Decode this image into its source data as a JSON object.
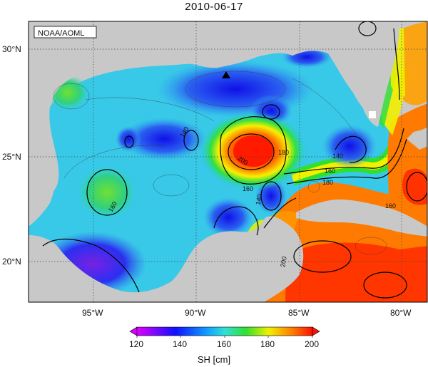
{
  "title": "2010-06-17",
  "credit": "NOAA/AOML",
  "lon_ticks": [
    "95°W",
    "90°W",
    "85°W",
    "80°W"
  ],
  "lat_ticks": [
    "30°N",
    "25°N",
    "20°N"
  ],
  "contour_labels": [
    "140",
    "140",
    "140",
    "160",
    "160",
    "160",
    "160",
    "180",
    "180",
    "200",
    "200"
  ],
  "colorbar": {
    "label": "SH [cm]",
    "ticks": [
      "120",
      "140",
      "160",
      "180",
      "200"
    ],
    "min": 120,
    "max": 200
  },
  "colors": {
    "land": "#c8c8c8",
    "c120": "#d400ff",
    "c140": "#1020ff",
    "c160": "#30e0d8",
    "c180": "#f0f000",
    "c200": "#ff2000"
  },
  "marker": "triangle-marker"
}
